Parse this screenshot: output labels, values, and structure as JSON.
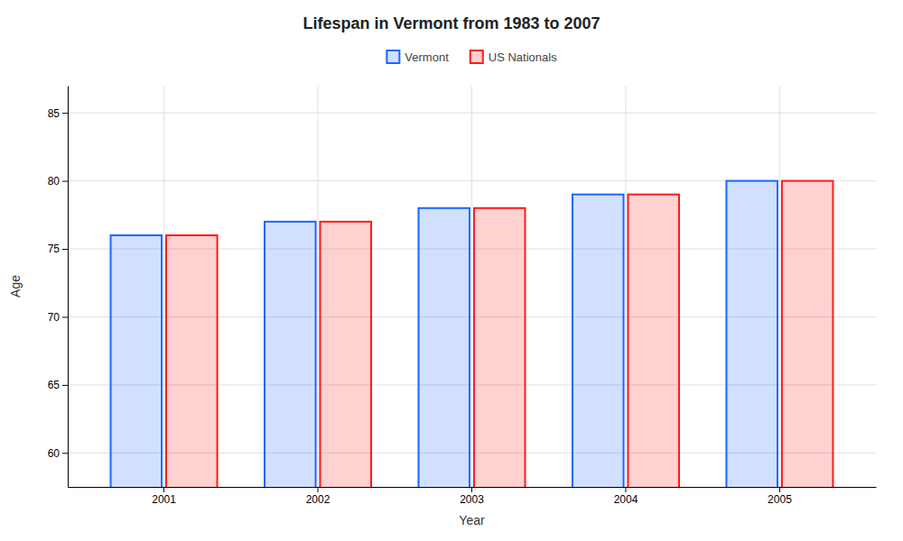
{
  "chart_data": {
    "type": "bar",
    "title": "Lifespan in Vermont from 1983 to 2007",
    "xlabel": "Year",
    "ylabel": "Age",
    "categories": [
      "2001",
      "2002",
      "2003",
      "2004",
      "2005"
    ],
    "series": [
      {
        "name": "Vermont",
        "color": "#1a66ff",
        "values": [
          76,
          77,
          78,
          79,
          80
        ]
      },
      {
        "name": "US Nationals",
        "color": "#ff1a1a",
        "values": [
          76,
          77,
          78,
          79,
          80
        ]
      }
    ],
    "ylim": [
      57.5,
      87
    ],
    "yticks": [
      60,
      65,
      70,
      75,
      80,
      85
    ],
    "grid": true,
    "legend": "top"
  }
}
